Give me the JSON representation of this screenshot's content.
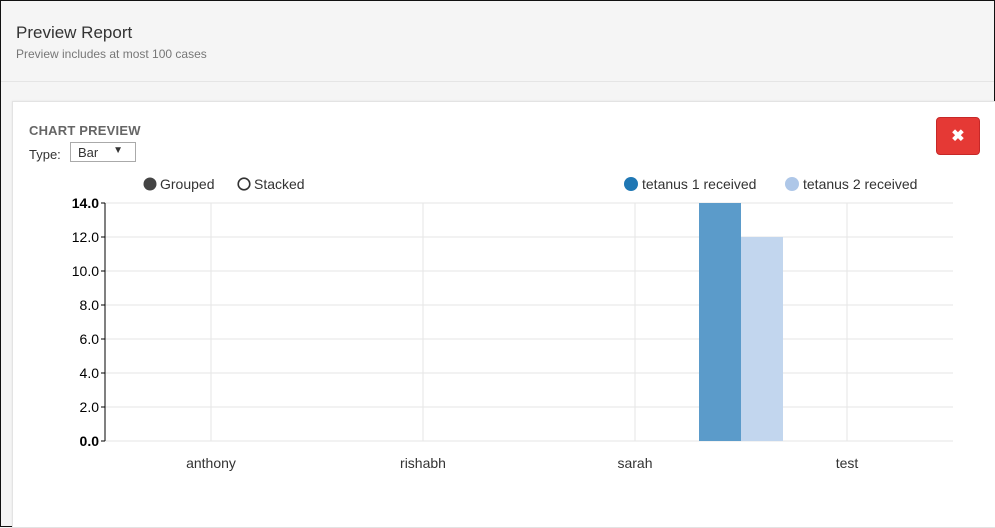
{
  "header": {
    "title": "Preview Report",
    "subtitle": "Preview includes at most 100 cases"
  },
  "panel": {
    "title": "CHART PREVIEW",
    "type_label": "Type:",
    "type_value": "Bar",
    "close_icon": "close-icon"
  },
  "controls": {
    "grouped_label": "Grouped",
    "stacked_label": "Stacked",
    "selected": "Grouped"
  },
  "colors": {
    "series1": "#5b9bca",
    "series2": "#c2d6ee",
    "legend1": "#1f77b4",
    "legend2": "#aec7e8",
    "close": "#e53935"
  },
  "chart_data": {
    "type": "bar",
    "mode": "grouped",
    "categories": [
      "anthony",
      "rishabh",
      "sarah",
      "test"
    ],
    "series": [
      {
        "name": "tetanus 1 received",
        "values": [
          0,
          0,
          14,
          0
        ]
      },
      {
        "name": "tetanus 2 received",
        "values": [
          0,
          0,
          12,
          0
        ]
      }
    ],
    "ylim": [
      0,
      14
    ],
    "yticks": [
      "0.0",
      "2.0",
      "4.0",
      "6.0",
      "8.0",
      "10.0",
      "12.0",
      "14.0"
    ],
    "grid": true,
    "legend_position": "top-right"
  }
}
